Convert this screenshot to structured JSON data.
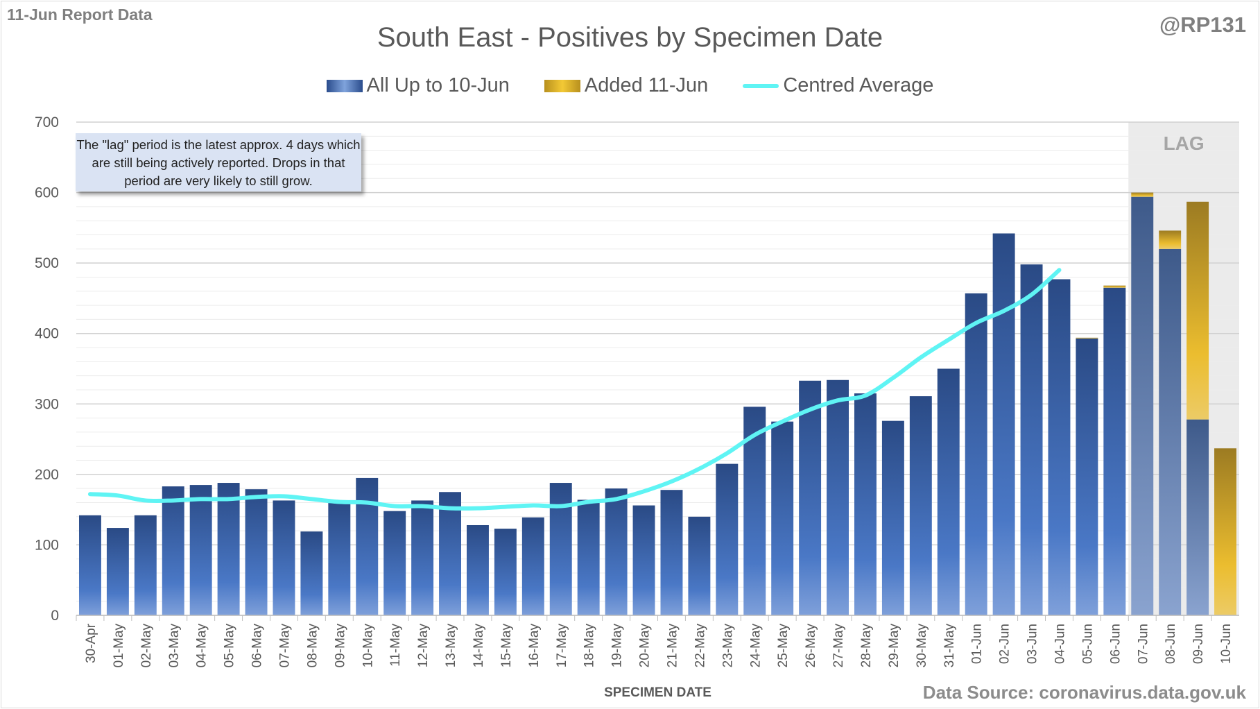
{
  "header": {
    "report_label": "11-Jun Report Data",
    "handle": "@RP131",
    "source": "Data Source: coronavirus.data.gov.uk"
  },
  "note": "The \"lag\" period is the latest approx. 4 days which are still being actively reported.  Drops in that period are very likely to still grow.",
  "colors": {
    "blue": "#3f68b0",
    "gold": "#e8b923",
    "average": "#5ff4f4",
    "lag_bg": "#ebebeb"
  },
  "chart_data": {
    "type": "bar",
    "title": "South East - Positives by Specimen Date",
    "xlabel": "SPECIMEN DATE",
    "ylabel": "",
    "ylim": [
      0,
      700
    ],
    "yticks": [
      0,
      100,
      200,
      300,
      400,
      500,
      600,
      700
    ],
    "grid": true,
    "legend_position": "top",
    "lag_label": "LAG",
    "lag_categories": [
      "07-Jun",
      "08-Jun",
      "09-Jun",
      "10-Jun"
    ],
    "categories": [
      "30-Apr",
      "01-May",
      "02-May",
      "03-May",
      "04-May",
      "05-May",
      "06-May",
      "07-May",
      "08-May",
      "09-May",
      "10-May",
      "11-May",
      "12-May",
      "13-May",
      "14-May",
      "15-May",
      "16-May",
      "17-May",
      "18-May",
      "19-May",
      "20-May",
      "21-May",
      "22-May",
      "23-May",
      "24-May",
      "25-May",
      "26-May",
      "27-May",
      "28-May",
      "29-May",
      "30-May",
      "31-May",
      "01-Jun",
      "02-Jun",
      "03-Jun",
      "04-Jun",
      "05-Jun",
      "06-Jun",
      "07-Jun",
      "08-Jun",
      "09-Jun",
      "10-Jun"
    ],
    "series": [
      {
        "name": "All Up to 10-Jun",
        "type": "bar",
        "values": [
          142,
          124,
          142,
          183,
          185,
          188,
          179,
          163,
          119,
          160,
          195,
          148,
          163,
          175,
          128,
          123,
          139,
          188,
          164,
          180,
          156,
          178,
          140,
          215,
          296,
          275,
          333,
          334,
          315,
          276,
          311,
          350,
          457,
          542,
          498,
          477,
          393,
          465,
          594,
          520,
          278,
          0
        ]
      },
      {
        "name": "Added 11-Jun",
        "type": "bar",
        "values": [
          0,
          0,
          0,
          0,
          0,
          0,
          0,
          0,
          0,
          0,
          0,
          0,
          0,
          0,
          0,
          0,
          0,
          0,
          0,
          0,
          0,
          0,
          0,
          0,
          0,
          0,
          0,
          0,
          0,
          0,
          0,
          0,
          0,
          0,
          0,
          0,
          1,
          3,
          6,
          26,
          309,
          237
        ]
      },
      {
        "name": "Centred Average",
        "type": "line",
        "values": [
          172,
          170,
          163,
          163,
          165,
          165,
          168,
          169,
          165,
          161,
          160,
          155,
          155,
          152,
          152,
          154,
          156,
          155,
          161,
          165,
          176,
          190,
          208,
          230,
          256,
          275,
          292,
          305,
          312,
          337,
          366,
          391,
          415,
          432,
          455,
          490,
          null,
          null,
          null,
          null,
          null,
          null
        ]
      }
    ]
  }
}
